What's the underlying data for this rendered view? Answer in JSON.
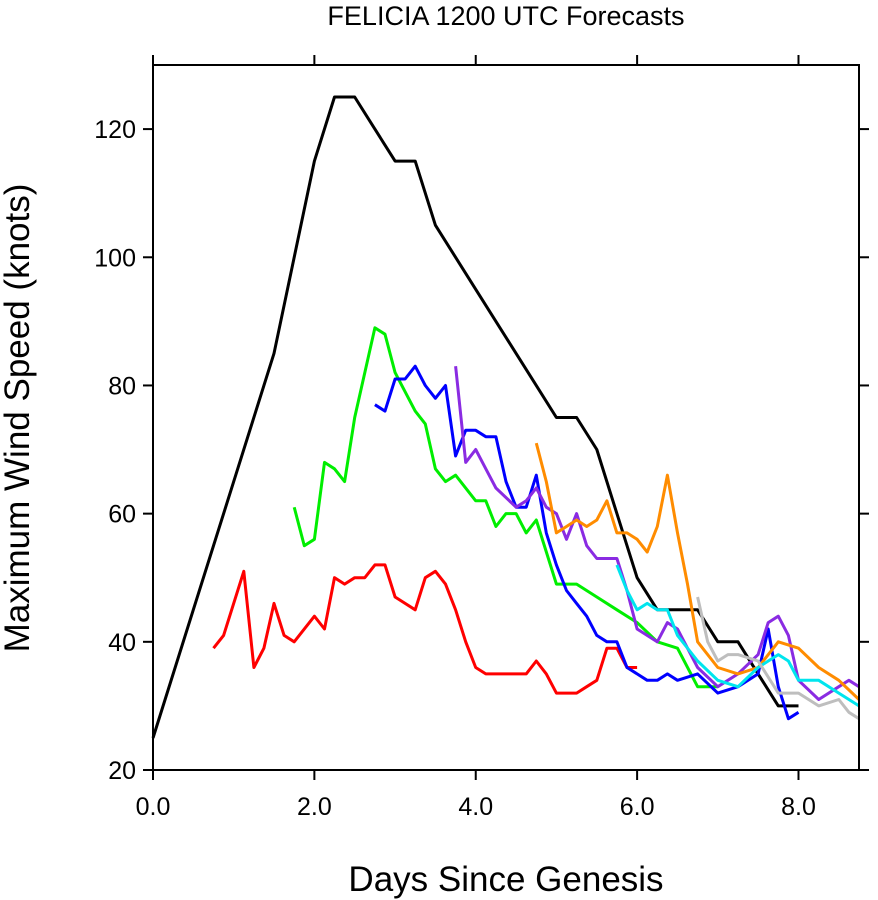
{
  "chart_data": {
    "type": "line",
    "title": "FELICIA 1200 UTC Forecasts",
    "xlabel": "Days Since Genesis",
    "ylabel": "Maximum Wind Speed (knots)",
    "xlim": [
      0,
      8.75
    ],
    "ylim": [
      20,
      130
    ],
    "xticks": [
      0,
      2,
      4,
      6,
      8
    ],
    "xtick_labels": [
      "0.0",
      "2.0",
      "4.0",
      "6.0",
      "8.0"
    ],
    "yticks": [
      20,
      40,
      60,
      80,
      100,
      120
    ],
    "ytick_labels": [
      "20",
      "40",
      "60",
      "80",
      "100",
      "120"
    ],
    "grid": false,
    "legend": "none",
    "series": [
      {
        "color": "#000000",
        "points": [
          [
            0,
            25
          ],
          [
            0.5,
            45
          ],
          [
            1,
            65
          ],
          [
            1.5,
            85
          ],
          [
            2,
            115
          ],
          [
            2.25,
            125
          ],
          [
            2.5,
            125
          ],
          [
            2.75,
            120
          ],
          [
            3,
            115
          ],
          [
            3.25,
            115
          ],
          [
            3.5,
            105
          ],
          [
            4,
            95
          ],
          [
            4.5,
            85
          ],
          [
            5,
            75
          ],
          [
            5.25,
            75
          ],
          [
            5.5,
            70
          ],
          [
            5.75,
            60
          ],
          [
            6,
            50
          ],
          [
            6.25,
            45
          ],
          [
            6.5,
            45
          ],
          [
            6.75,
            45
          ],
          [
            7,
            40
          ],
          [
            7.25,
            40
          ],
          [
            7.5,
            35
          ],
          [
            7.75,
            30
          ],
          [
            8,
            30
          ]
        ]
      },
      {
        "color": "#ff0000",
        "points": [
          [
            0.75,
            39
          ],
          [
            0.875,
            41
          ],
          [
            1.125,
            51
          ],
          [
            1.25,
            36
          ],
          [
            1.375,
            39
          ],
          [
            1.5,
            46
          ],
          [
            1.625,
            41
          ],
          [
            1.75,
            40
          ],
          [
            2,
            44
          ],
          [
            2.125,
            42
          ],
          [
            2.25,
            50
          ],
          [
            2.375,
            49
          ],
          [
            2.5,
            50
          ],
          [
            2.625,
            50
          ],
          [
            2.75,
            52
          ],
          [
            2.875,
            52
          ],
          [
            3,
            47
          ],
          [
            3.125,
            46
          ],
          [
            3.25,
            45
          ],
          [
            3.375,
            50
          ],
          [
            3.5,
            51
          ],
          [
            3.625,
            49
          ],
          [
            3.75,
            45
          ],
          [
            3.875,
            40
          ],
          [
            4,
            36
          ],
          [
            4.125,
            35
          ],
          [
            4.25,
            35
          ],
          [
            4.375,
            35
          ],
          [
            4.5,
            35
          ],
          [
            4.625,
            35
          ],
          [
            4.75,
            37
          ],
          [
            4.875,
            35
          ],
          [
            5,
            32
          ],
          [
            5.125,
            32
          ],
          [
            5.25,
            32
          ],
          [
            5.375,
            33
          ],
          [
            5.5,
            34
          ],
          [
            5.625,
            39
          ],
          [
            5.75,
            39
          ],
          [
            5.875,
            36
          ],
          [
            6,
            36
          ]
        ]
      },
      {
        "color": "#00ee00",
        "points": [
          [
            1.75,
            61
          ],
          [
            1.875,
            55
          ],
          [
            2,
            56
          ],
          [
            2.125,
            68
          ],
          [
            2.25,
            67
          ],
          [
            2.375,
            65
          ],
          [
            2.5,
            75
          ],
          [
            2.75,
            89
          ],
          [
            2.875,
            88
          ],
          [
            3,
            82
          ],
          [
            3.25,
            76
          ],
          [
            3.375,
            74
          ],
          [
            3.5,
            67
          ],
          [
            3.625,
            65
          ],
          [
            3.75,
            66
          ],
          [
            4,
            62
          ],
          [
            4.125,
            62
          ],
          [
            4.25,
            58
          ],
          [
            4.375,
            60
          ],
          [
            4.5,
            60
          ],
          [
            4.625,
            57
          ],
          [
            4.75,
            59
          ],
          [
            5,
            49
          ],
          [
            5.25,
            49
          ],
          [
            5.5,
            47
          ],
          [
            5.75,
            45
          ],
          [
            6,
            43
          ],
          [
            6.25,
            40
          ],
          [
            6.5,
            39
          ],
          [
            6.75,
            33
          ],
          [
            7,
            33
          ]
        ]
      },
      {
        "color": "#0000ff",
        "points": [
          [
            2.75,
            77
          ],
          [
            2.875,
            76
          ],
          [
            3,
            81
          ],
          [
            3.125,
            81
          ],
          [
            3.25,
            83
          ],
          [
            3.375,
            80
          ],
          [
            3.5,
            78
          ],
          [
            3.625,
            80
          ],
          [
            3.75,
            69
          ],
          [
            3.875,
            73
          ],
          [
            4,
            73
          ],
          [
            4.125,
            72
          ],
          [
            4.25,
            72
          ],
          [
            4.375,
            65
          ],
          [
            4.5,
            61
          ],
          [
            4.625,
            61
          ],
          [
            4.75,
            66
          ],
          [
            4.875,
            57
          ],
          [
            5,
            52
          ],
          [
            5.125,
            48
          ],
          [
            5.25,
            46
          ],
          [
            5.375,
            44
          ],
          [
            5.5,
            41
          ],
          [
            5.625,
            40
          ],
          [
            5.75,
            40
          ],
          [
            5.875,
            36
          ],
          [
            6,
            35
          ],
          [
            6.125,
            34
          ],
          [
            6.25,
            34
          ],
          [
            6.375,
            35
          ],
          [
            6.5,
            34
          ],
          [
            6.75,
            35
          ],
          [
            7,
            32
          ],
          [
            7.25,
            33
          ],
          [
            7.5,
            35
          ],
          [
            7.625,
            42
          ],
          [
            7.75,
            33
          ],
          [
            7.875,
            28
          ],
          [
            8,
            29
          ]
        ]
      },
      {
        "color": "#8a2be2",
        "points": [
          [
            3.75,
            83
          ],
          [
            3.875,
            68
          ],
          [
            4,
            70
          ],
          [
            4.125,
            67
          ],
          [
            4.25,
            64
          ],
          [
            4.5,
            61
          ],
          [
            4.625,
            62
          ],
          [
            4.75,
            64
          ],
          [
            4.875,
            61
          ],
          [
            5,
            60
          ],
          [
            5.125,
            56
          ],
          [
            5.25,
            60
          ],
          [
            5.375,
            55
          ],
          [
            5.5,
            53
          ],
          [
            5.75,
            53
          ],
          [
            5.875,
            48
          ],
          [
            6,
            42
          ],
          [
            6.25,
            40
          ],
          [
            6.375,
            43
          ],
          [
            6.5,
            42
          ],
          [
            6.75,
            36
          ],
          [
            7,
            33
          ],
          [
            7.25,
            35
          ],
          [
            7.5,
            38
          ],
          [
            7.625,
            43
          ],
          [
            7.75,
            44
          ],
          [
            7.875,
            41
          ],
          [
            8,
            34
          ],
          [
            8.25,
            31
          ],
          [
            8.5,
            33
          ],
          [
            8.625,
            34
          ],
          [
            8.75,
            33
          ]
        ]
      },
      {
        "color": "#ff8c00",
        "points": [
          [
            4.75,
            71
          ],
          [
            4.875,
            65
          ],
          [
            5,
            57
          ],
          [
            5.125,
            58
          ],
          [
            5.25,
            59
          ],
          [
            5.375,
            58
          ],
          [
            5.5,
            59
          ],
          [
            5.625,
            62
          ],
          [
            5.75,
            57
          ],
          [
            5.875,
            57
          ],
          [
            6,
            56
          ],
          [
            6.125,
            54
          ],
          [
            6.25,
            58
          ],
          [
            6.375,
            66
          ],
          [
            6.5,
            57
          ],
          [
            6.625,
            49
          ],
          [
            6.75,
            40
          ],
          [
            7,
            36
          ],
          [
            7.25,
            35
          ],
          [
            7.5,
            36
          ],
          [
            7.75,
            40
          ],
          [
            8,
            39
          ],
          [
            8.25,
            36
          ],
          [
            8.5,
            34
          ],
          [
            8.75,
            31
          ]
        ]
      },
      {
        "color": "#00e5ee",
        "points": [
          [
            5.75,
            52
          ],
          [
            5.875,
            48
          ],
          [
            6,
            45
          ],
          [
            6.125,
            46
          ],
          [
            6.25,
            45
          ],
          [
            6.375,
            45
          ],
          [
            6.5,
            41
          ],
          [
            6.75,
            37
          ],
          [
            7,
            34
          ],
          [
            7.25,
            33
          ],
          [
            7.5,
            36
          ],
          [
            7.75,
            38
          ],
          [
            7.875,
            37
          ],
          [
            8,
            34
          ],
          [
            8.25,
            34
          ],
          [
            8.5,
            32
          ],
          [
            8.75,
            30
          ]
        ]
      },
      {
        "color": "#bebebe",
        "points": [
          [
            6.75,
            47
          ],
          [
            6.875,
            40
          ],
          [
            7,
            37
          ],
          [
            7.125,
            38
          ],
          [
            7.25,
            38
          ],
          [
            7.5,
            37
          ],
          [
            7.75,
            32
          ],
          [
            8,
            32
          ],
          [
            8.125,
            31
          ],
          [
            8.25,
            30
          ],
          [
            8.5,
            31
          ],
          [
            8.625,
            29
          ],
          [
            8.75,
            28
          ]
        ]
      }
    ]
  }
}
